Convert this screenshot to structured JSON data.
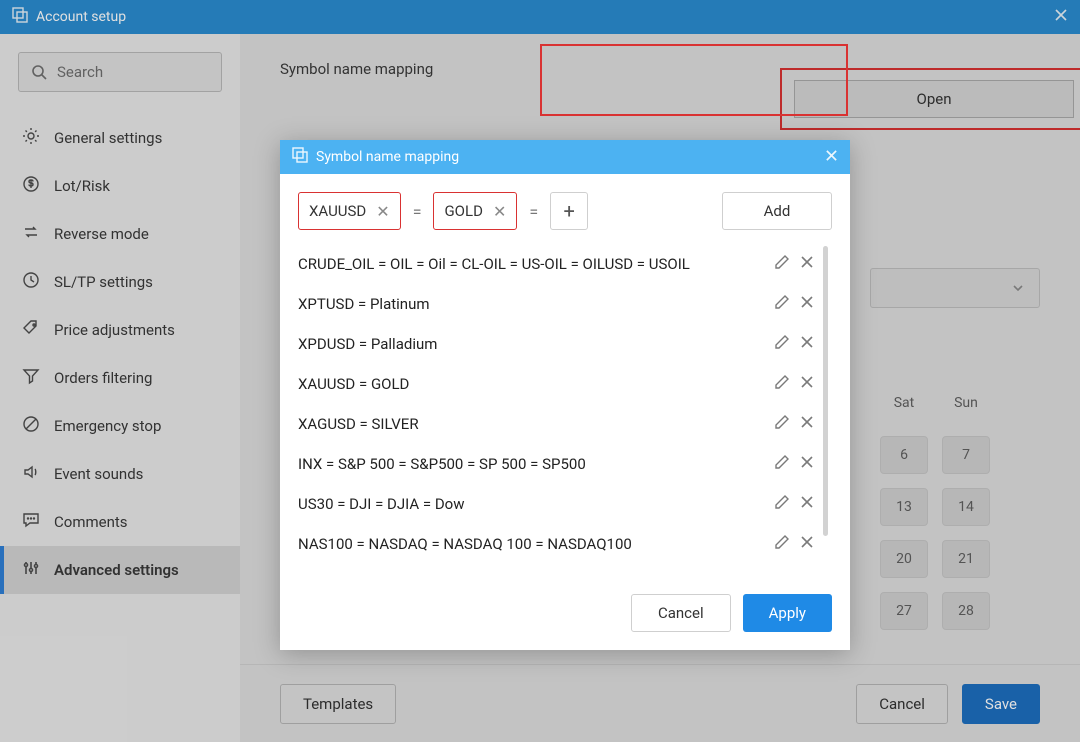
{
  "colors": {
    "titlebar_outer": "#2b8dd1",
    "titlebar_modal": "#4cb2f2",
    "highlight_red": "#d93232",
    "primary_blue": "#1d6fc0",
    "apply_blue": "#1f8ae6",
    "sidebar_bg": "#e9e9e9",
    "main_bg": "#dedede"
  },
  "window": {
    "title": "Account setup"
  },
  "search": {
    "placeholder": "Search"
  },
  "sidebar": {
    "items": [
      {
        "label": "General settings",
        "icon": "gear-icon"
      },
      {
        "label": "Lot/Risk",
        "icon": "dollar-icon"
      },
      {
        "label": "Reverse mode",
        "icon": "swap-icon"
      },
      {
        "label": "SL/TP settings",
        "icon": "clock-icon"
      },
      {
        "label": "Price adjustments",
        "icon": "tag-icon"
      },
      {
        "label": "Orders filtering",
        "icon": "filter-icon"
      },
      {
        "label": "Emergency stop",
        "icon": "stop-icon"
      },
      {
        "label": "Event sounds",
        "icon": "sound-icon"
      },
      {
        "label": "Comments",
        "icon": "comment-icon"
      },
      {
        "label": "Advanced settings",
        "icon": "sliders-icon"
      }
    ],
    "active_index": 9
  },
  "main": {
    "section_label": "Symbol name mapping",
    "open_button": "Open"
  },
  "calendar": {
    "headers": [
      "Sat",
      "Sun"
    ],
    "rows": [
      [
        "6",
        "7"
      ],
      [
        "13",
        "14"
      ],
      [
        "20",
        "21"
      ],
      [
        "27",
        "28"
      ]
    ]
  },
  "footer": {
    "templates": "Templates",
    "cancel": "Cancel",
    "save": "Save"
  },
  "modal": {
    "title": "Symbol name mapping",
    "chips": [
      "XAUUSD",
      "GOLD"
    ],
    "eq_glyph": "=",
    "plus_glyph": "+",
    "add_label": "Add",
    "mappings": [
      "CRUDE_OIL = OIL = Oil = CL-OIL = US-OIL = OILUSD = USOIL",
      "XPTUSD = Platinum",
      "XPDUSD = Palladium",
      "XAUUSD = GOLD",
      "XAGUSD = SILVER",
      "INX = S&P 500 = S&P500 = SP 500 = SP500",
      "US30 = DJI = DJIA = Dow",
      "NAS100 = NASDAQ = NASDAQ 100 = NASDAQ100"
    ],
    "cancel": "Cancel",
    "apply": "Apply"
  }
}
